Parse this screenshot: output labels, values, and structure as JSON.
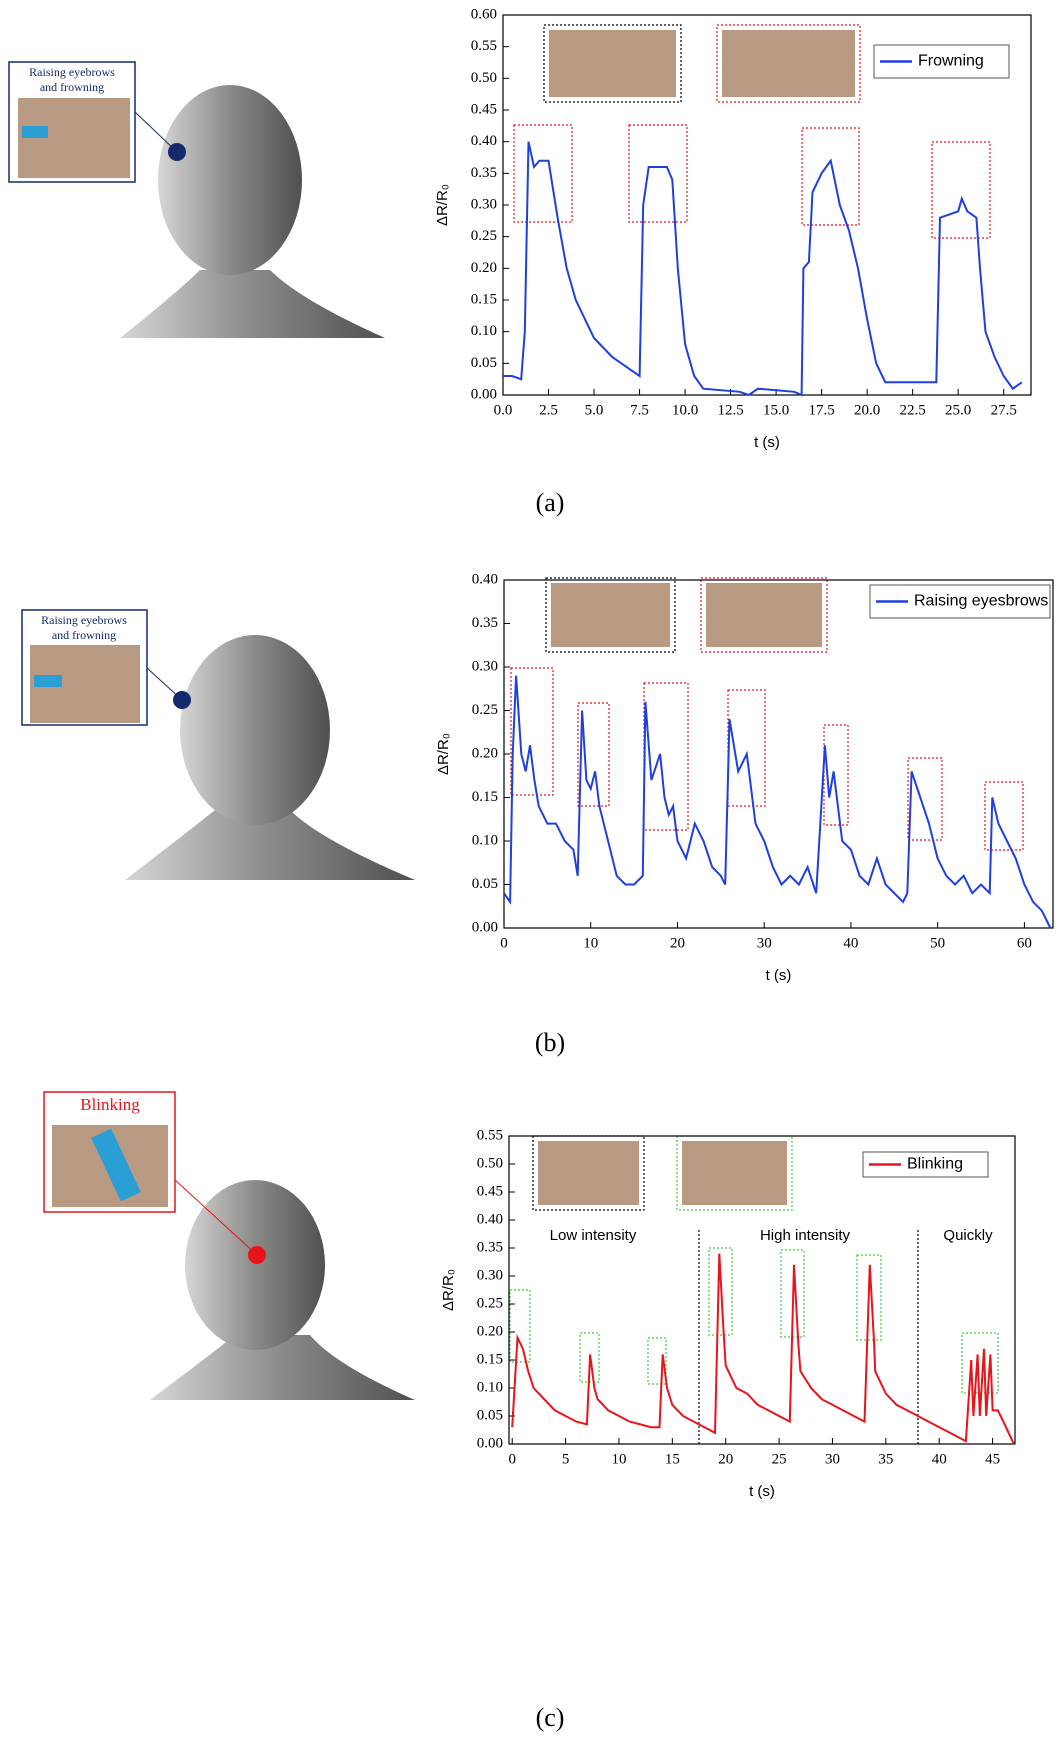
{
  "chart_data": [
    {
      "type": "line",
      "caption": "(a)",
      "callout": [
        "Raising eyebrows",
        "and frowning"
      ],
      "xlabel": "t (s)",
      "ylabel": "ΔR/R₀",
      "xlim": [
        0,
        29
      ],
      "ylim": [
        0,
        0.6
      ],
      "xticks": [
        {
          "value": 0,
          "label": "0.0"
        },
        {
          "value": 2.5,
          "label": "2.5"
        },
        {
          "value": 5,
          "label": "5.0"
        },
        {
          "value": 7.5,
          "label": "7.5"
        },
        {
          "value": 10,
          "label": "10.0"
        },
        {
          "value": 12.5,
          "label": "12.5"
        },
        {
          "value": 15,
          "label": "15.0"
        },
        {
          "value": 17.5,
          "label": "17.5"
        },
        {
          "value": 20,
          "label": "20.0"
        },
        {
          "value": 22.5,
          "label": "22.5"
        },
        {
          "value": 25,
          "label": "25.0"
        },
        {
          "value": 27.5,
          "label": "27.5"
        }
      ],
      "yticks": [
        {
          "value": 0,
          "label": "0.00"
        },
        {
          "value": 0.05,
          "label": "0.05"
        },
        {
          "value": 0.1,
          "label": "0.10"
        },
        {
          "value": 0.15,
          "label": "0.15"
        },
        {
          "value": 0.2,
          "label": "0.20"
        },
        {
          "value": 0.25,
          "label": "0.25"
        },
        {
          "value": 0.3,
          "label": "0.30"
        },
        {
          "value": 0.35,
          "label": "0.35"
        },
        {
          "value": 0.4,
          "label": "0.40"
        },
        {
          "value": 0.45,
          "label": "0.45"
        },
        {
          "value": 0.5,
          "label": "0.50"
        },
        {
          "value": 0.55,
          "label": "0.55"
        },
        {
          "value": 0.6,
          "label": "0.60"
        }
      ],
      "x": [
        0,
        0.5,
        1.0,
        1.2,
        1.4,
        1.7,
        2.0,
        2.5,
        3.0,
        3.5,
        4,
        5,
        6,
        7,
        7.5,
        7.7,
        8,
        9,
        9.3,
        9.6,
        10,
        10.5,
        11,
        13,
        13.5,
        14,
        16,
        16.4,
        16.5,
        16.8,
        17.0,
        17.5,
        18,
        18.5,
        19,
        19.5,
        20,
        20.5,
        21,
        22,
        23,
        23.8,
        24,
        25,
        25.2,
        25.5,
        26,
        26.2,
        26.5,
        27,
        27.5,
        28,
        28.5
      ],
      "series": [
        {
          "name": "Frowning",
          "color": "#1f3fe0",
          "values": [
            0.03,
            0.03,
            0.025,
            0.1,
            0.4,
            0.36,
            0.37,
            0.37,
            0.28,
            0.2,
            0.15,
            0.09,
            0.06,
            0.04,
            0.03,
            0.3,
            0.36,
            0.36,
            0.34,
            0.2,
            0.08,
            0.03,
            0.01,
            0.005,
            0.0,
            0.01,
            0.005,
            0.0,
            0.2,
            0.21,
            0.32,
            0.35,
            0.37,
            0.3,
            0.26,
            0.2,
            0.12,
            0.05,
            0.02,
            0.02,
            0.02,
            0.02,
            0.28,
            0.29,
            0.31,
            0.29,
            0.28,
            0.2,
            0.1,
            0.06,
            0.03,
            0.01,
            0.02
          ]
        }
      ]
    },
    {
      "type": "line",
      "caption": "(b)",
      "callout": [
        "Raising eyebrows",
        "and frowning"
      ],
      "xlabel": "t (s)",
      "ylabel": "ΔR/R₀",
      "xlim": [
        0,
        63.3
      ],
      "ylim": [
        0,
        0.4
      ],
      "xticks": [
        0,
        10,
        20,
        30,
        40,
        50,
        60
      ],
      "yticks": [
        {
          "value": 0,
          "label": "0.00"
        },
        {
          "value": 0.05,
          "label": "0.05"
        },
        {
          "value": 0.1,
          "label": "0.10"
        },
        {
          "value": 0.15,
          "label": "0.15"
        },
        {
          "value": 0.2,
          "label": "0.20"
        },
        {
          "value": 0.25,
          "label": "0.25"
        },
        {
          "value": 0.3,
          "label": "0.30"
        },
        {
          "value": 0.35,
          "label": "0.35"
        },
        {
          "value": 0.4,
          "label": "0.40"
        }
      ],
      "x": [
        0,
        0.7,
        1,
        1.4,
        2,
        2.5,
        3,
        3.5,
        4,
        5,
        6,
        7,
        8,
        8.5,
        9,
        9.5,
        10,
        10.5,
        11,
        12,
        13,
        14,
        15,
        16,
        16.3,
        17,
        18,
        18.5,
        19,
        19.5,
        20,
        21,
        22,
        23,
        24,
        25,
        25.5,
        26,
        27,
        28,
        29,
        30,
        31,
        32,
        33,
        34,
        35,
        36,
        37,
        37.5,
        38,
        39,
        40,
        41,
        42,
        43,
        44,
        45,
        46,
        46.5,
        47,
        48,
        49,
        50,
        51,
        52,
        53,
        54,
        55,
        56,
        56.3,
        57,
        58,
        59,
        60,
        61,
        62,
        63
      ],
      "series": [
        {
          "name": "Raising eyesbrows",
          "color": "#1f3fe0",
          "values": [
            0.04,
            0.03,
            0.2,
            0.29,
            0.2,
            0.18,
            0.21,
            0.17,
            0.14,
            0.12,
            0.12,
            0.1,
            0.09,
            0.06,
            0.25,
            0.17,
            0.16,
            0.18,
            0.14,
            0.1,
            0.06,
            0.05,
            0.05,
            0.06,
            0.26,
            0.17,
            0.2,
            0.15,
            0.13,
            0.14,
            0.1,
            0.08,
            0.12,
            0.1,
            0.07,
            0.06,
            0.05,
            0.24,
            0.18,
            0.2,
            0.12,
            0.1,
            0.07,
            0.05,
            0.06,
            0.05,
            0.07,
            0.04,
            0.21,
            0.15,
            0.18,
            0.1,
            0.09,
            0.06,
            0.05,
            0.08,
            0.05,
            0.04,
            0.03,
            0.04,
            0.18,
            0.15,
            0.12,
            0.08,
            0.06,
            0.05,
            0.06,
            0.04,
            0.05,
            0.04,
            0.15,
            0.12,
            0.1,
            0.08,
            0.05,
            0.03,
            0.02,
            0.0
          ]
        }
      ]
    },
    {
      "type": "line",
      "caption": "(c)",
      "callout": [
        "Blinking"
      ],
      "xlabel": "t (s)",
      "ylabel": "ΔR/R₀",
      "xlim": [
        -0.3,
        47.1
      ],
      "ylim": [
        0,
        0.55
      ],
      "xticks": [
        0,
        5,
        10,
        15,
        20,
        25,
        30,
        35,
        40,
        45
      ],
      "yticks": [
        {
          "value": 0,
          "label": "0.00"
        },
        {
          "value": 0.05,
          "label": "0.05"
        },
        {
          "value": 0.1,
          "label": "0.10"
        },
        {
          "value": 0.15,
          "label": "0.15"
        },
        {
          "value": 0.2,
          "label": "0.20"
        },
        {
          "value": 0.25,
          "label": "0.25"
        },
        {
          "value": 0.3,
          "label": "0.30"
        },
        {
          "value": 0.35,
          "label": "0.35"
        },
        {
          "value": 0.4,
          "label": "0.40"
        },
        {
          "value": 0.45,
          "label": "0.45"
        },
        {
          "value": 0.5,
          "label": "0.50"
        },
        {
          "value": 0.55,
          "label": "0.55"
        }
      ],
      "annotations": [
        "Low intensity",
        "High intensity",
        "Quickly"
      ],
      "x": [
        0,
        0.5,
        1,
        1.5,
        2,
        3,
        4,
        5,
        6,
        7,
        7.3,
        7.7,
        8,
        9,
        10,
        11,
        12,
        13,
        13.8,
        14.1,
        14.5,
        15,
        16,
        17,
        18,
        19,
        19.4,
        19.8,
        20,
        21,
        22,
        23,
        24,
        25,
        26,
        26.4,
        26.8,
        27,
        28,
        29,
        30,
        31,
        32,
        33,
        33.5,
        33.9,
        34,
        35,
        36,
        37,
        38,
        39,
        40,
        41,
        42,
        42.5,
        43,
        43.2,
        43.6,
        43.8,
        44.2,
        44.4,
        44.8,
        45,
        45.5,
        46,
        46.5,
        47
      ],
      "series": [
        {
          "name": "Blinking",
          "color": "#e8141c",
          "values": [
            0.03,
            0.19,
            0.17,
            0.13,
            0.1,
            0.08,
            0.06,
            0.05,
            0.04,
            0.035,
            0.16,
            0.1,
            0.08,
            0.06,
            0.05,
            0.04,
            0.035,
            0.03,
            0.03,
            0.16,
            0.1,
            0.07,
            0.05,
            0.04,
            0.03,
            0.02,
            0.34,
            0.2,
            0.14,
            0.1,
            0.09,
            0.07,
            0.06,
            0.05,
            0.04,
            0.32,
            0.18,
            0.13,
            0.1,
            0.08,
            0.07,
            0.06,
            0.05,
            0.04,
            0.32,
            0.18,
            0.13,
            0.09,
            0.07,
            0.06,
            0.05,
            0.04,
            0.03,
            0.02,
            0.01,
            0.005,
            0.15,
            0.05,
            0.16,
            0.05,
            0.17,
            0.05,
            0.16,
            0.06,
            0.06,
            0.04,
            0.02,
            0.0
          ]
        }
      ]
    }
  ]
}
